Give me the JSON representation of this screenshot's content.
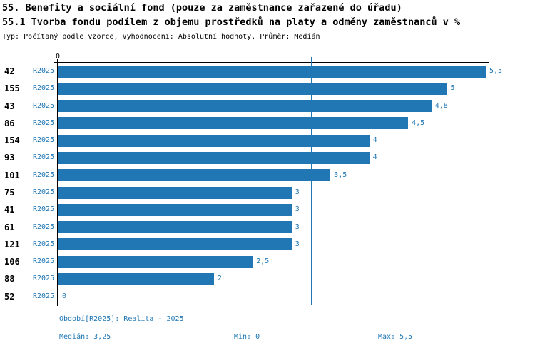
{
  "header": {
    "title1": "55. Benefity a sociální fond (pouze za zaměstnance zařazené do úřadu)",
    "title2": "55.1 Tvorba fondu podílem z objemu prostředků na platy a odměny zaměstnanců v %",
    "meta": "Typ: Počítaný podle vzorce, Vyhodnocení: Absolutní hodnoty, Průměr: Medián"
  },
  "chart_data": {
    "type": "bar",
    "orientation": "horizontal",
    "title": "55.1 Tvorba fondu podílem z objemu prostředků na platy a odměny zaměstnanců v %",
    "categories": [
      "42",
      "155",
      "43",
      "86",
      "154",
      "93",
      "101",
      "75",
      "41",
      "61",
      "121",
      "106",
      "88",
      "52"
    ],
    "series": [
      {
        "name": "R2025",
        "values": [
          5.5,
          5,
          4.8,
          4.5,
          4,
          4,
          3.5,
          3,
          3,
          3,
          3,
          2.5,
          2,
          0
        ],
        "value_labels": [
          "5,5",
          "5",
          "4,8",
          "4,5",
          "4",
          "4",
          "3,5",
          "3",
          "3",
          "3",
          "3",
          "2,5",
          "2",
          "0"
        ]
      }
    ],
    "xlim": [
      0,
      5.5
    ],
    "zero_tick_label": "0",
    "median_line_value": 3.25,
    "median": 3.25,
    "min": 0,
    "max": 5.5,
    "grid": false,
    "legend": false
  },
  "footer": {
    "period": "Období[R2025]: Realita - 2025",
    "median": "Medián: 3,25",
    "min": "Min: 0",
    "max": "Max: 5,5"
  },
  "colors": {
    "bar": "#2077b4",
    "blue_text": "#2077b4",
    "median_line": "#2077b4",
    "axis": "#000000"
  }
}
